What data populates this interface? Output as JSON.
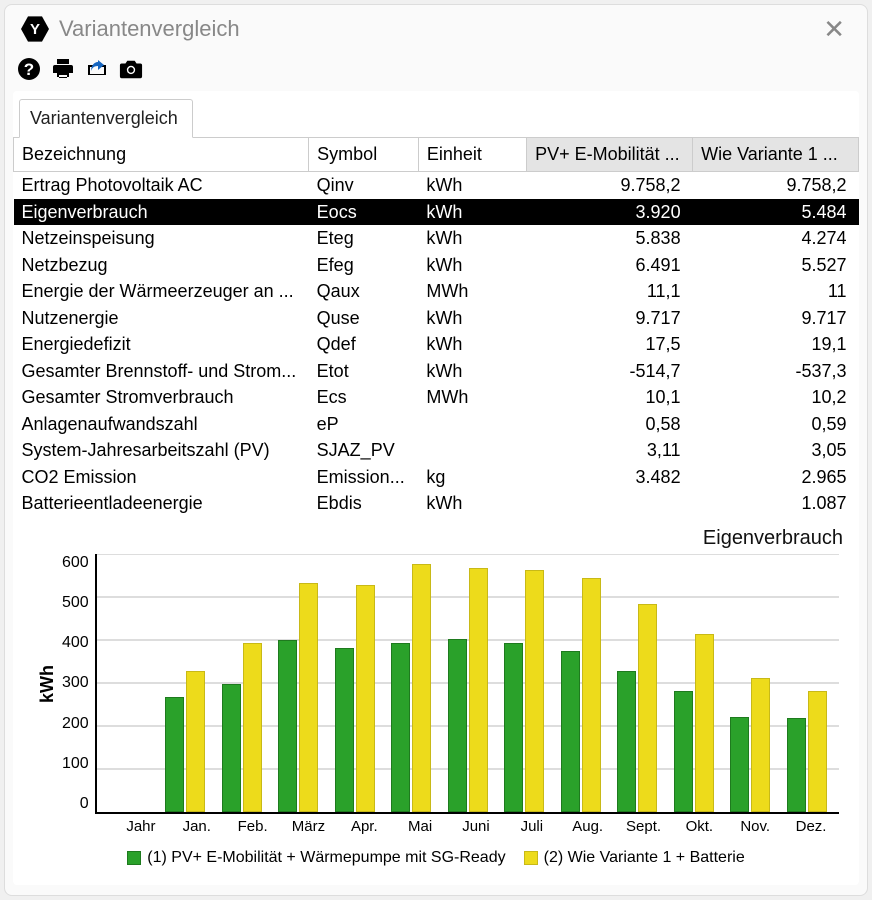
{
  "window": {
    "title": "Variantenvergleich",
    "logo_letter": "Y"
  },
  "toolbar": {
    "help_icon": "help-icon",
    "print_icon": "print-icon",
    "share_icon": "share-icon",
    "camera_icon": "camera-icon"
  },
  "tab": {
    "label": "Variantenvergleich"
  },
  "table": {
    "columns": {
      "bezeichnung": "Bezeichnung",
      "symbol": "Symbol",
      "einheit": "Einheit",
      "v1": "PV+ E-Mobilität ...",
      "v2": "Wie Variante 1 ..."
    },
    "selected_index": 1,
    "rows": [
      {
        "bez": "Ertrag Photovoltaik AC",
        "sym": "Qinv",
        "ein": "kWh",
        "v1": "9.758,2",
        "v2": "9.758,2"
      },
      {
        "bez": "Eigenverbrauch",
        "sym": "Eocs",
        "ein": "kWh",
        "v1": "3.920",
        "v2": "5.484"
      },
      {
        "bez": "Netzeinspeisung",
        "sym": "Eteg",
        "ein": "kWh",
        "v1": "5.838",
        "v2": "4.274"
      },
      {
        "bez": "Netzbezug",
        "sym": "Efeg",
        "ein": "kWh",
        "v1": "6.491",
        "v2": "5.527"
      },
      {
        "bez": "Energie der Wärmeerzeuger an ...",
        "sym": "Qaux",
        "ein": "MWh",
        "v1": "11,1",
        "v2": "11"
      },
      {
        "bez": "Nutzenergie",
        "sym": "Quse",
        "ein": "kWh",
        "v1": "9.717",
        "v2": "9.717"
      },
      {
        "bez": "Energiedefizit",
        "sym": "Qdef",
        "ein": "kWh",
        "v1": "17,5",
        "v2": "19,1"
      },
      {
        "bez": "Gesamter Brennstoff- und Strom...",
        "sym": "Etot",
        "ein": "kWh",
        "v1": "-514,7",
        "v2": "-537,3"
      },
      {
        "bez": "Gesamter Stromverbrauch",
        "sym": "Ecs",
        "ein": "MWh",
        "v1": "10,1",
        "v2": "10,2"
      },
      {
        "bez": "Anlagenaufwandszahl",
        "sym": "eP",
        "ein": "",
        "v1": "0,58",
        "v2": "0,59"
      },
      {
        "bez": "System-Jahresarbeitszahl (PV)",
        "sym": "SJAZ_PV",
        "ein": "",
        "v1": "3,11",
        "v2": "3,05"
      },
      {
        "bez": "CO2 Emission",
        "sym": "Emission...",
        "ein": "kg",
        "v1": "3.482",
        "v2": "2.965"
      },
      {
        "bez": "Batterieentladeenergie",
        "sym": "Ebdis",
        "ein": "kWh",
        "v1": "",
        "v2": "1.087"
      }
    ]
  },
  "chart": {
    "type": "bar",
    "title": "Eigenverbrauch",
    "ylabel": "kWh",
    "ymax": 600,
    "ytick_step": 100,
    "yticks": [
      "600",
      "500",
      "400",
      "300",
      "200",
      "100",
      "0"
    ],
    "categories": [
      "Jahr",
      "Jan.",
      "Feb.",
      "März",
      "Apr.",
      "Mai",
      "Juni",
      "Juli",
      "Aug.",
      "Sept.",
      "Okt.",
      "Nov.",
      "Dez."
    ],
    "series": [
      {
        "name": "(1) PV+ E-Mobilität + Wärmepumpe mit SG-Ready",
        "color": "#2aa12a",
        "border": "#1e7a1e",
        "values": [
          0,
          265,
          295,
          395,
          378,
          388,
          398,
          390,
          370,
          325,
          278,
          218,
          215
        ]
      },
      {
        "name": "(2) Wie Variante 1 + Batterie",
        "color": "#eddb1b",
        "border": "#c8b917",
        "values": [
          0,
          325,
          390,
          528,
          522,
          572,
          562,
          558,
          538,
          478,
          410,
          308,
          278
        ]
      }
    ],
    "background_color": "#ffffff",
    "grid_color": "#bbbbbb",
    "axis_color": "#000000",
    "label_fontsize": 16,
    "ylabel_fontsize": 18
  }
}
